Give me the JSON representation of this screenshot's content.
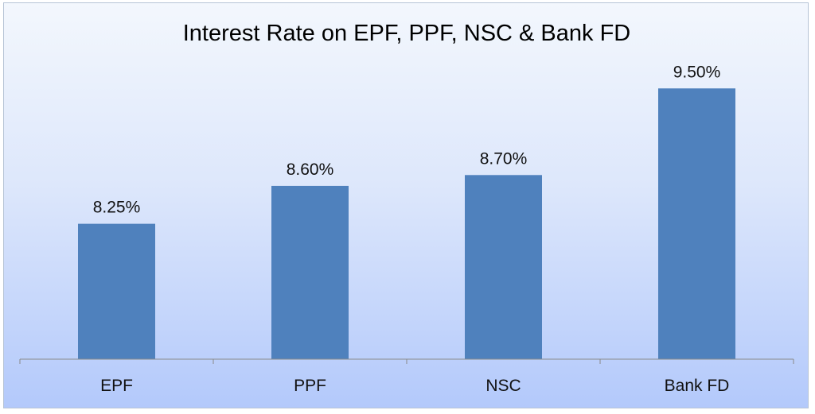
{
  "chart_data": {
    "type": "bar",
    "title": "Interest Rate on EPF, PPF, NSC & Bank FD",
    "categories": [
      "EPF",
      "PPF",
      "NSC",
      "Bank FD"
    ],
    "values": [
      8.25,
      8.6,
      8.7,
      9.5
    ],
    "data_labels": [
      "8.25%",
      "8.60%",
      "8.70%",
      "9.50%"
    ],
    "ylim": [
      7.0,
      9.7
    ],
    "grid": false,
    "legend": "none",
    "bar_color": "#4f81bd"
  }
}
